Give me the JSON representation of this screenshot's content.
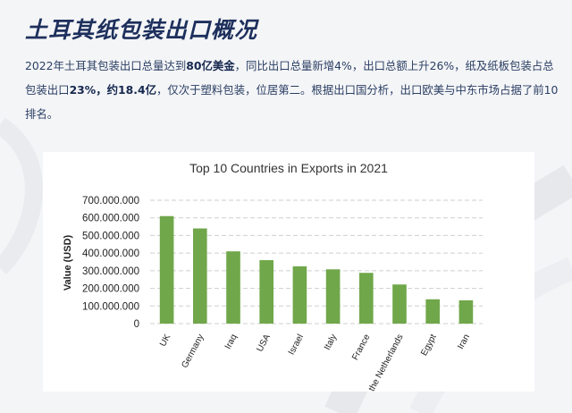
{
  "header": {
    "title": "土耳其纸包装出口概况"
  },
  "summary": {
    "part1": "2022年土耳其包装出口总量达到",
    "bold1": "80亿美金",
    "part2": "，同比出口总量新增4%，出口总额上升26%，纸及纸板包装占总包装出口",
    "bold2": "23%，约18.4亿",
    "part3": "，仅次于塑料包装，位居第二。根据出口国分析，出口欧美与中东市场占据了前10排名。"
  },
  "colors": {
    "bar": "#70a74a",
    "title": "#1d2f5c",
    "grid": "#cfcfcf"
  },
  "chart_data": {
    "type": "bar",
    "title": "Top 10 Countries in Exports in 2021",
    "xlabel": "",
    "ylabel": "Value (USD)",
    "categories": [
      "UK",
      "Germany",
      "Iraq",
      "USA",
      "Israel",
      "Italy",
      "France",
      "the Netherlands",
      "Egypt",
      "Iran"
    ],
    "values": [
      610000000,
      540000000,
      410000000,
      360000000,
      325000000,
      308000000,
      288000000,
      222000000,
      138000000,
      132000000
    ],
    "ylim": [
      0,
      700000000
    ],
    "yticks": [
      "0",
      "100.000.000",
      "200.000.000",
      "300.000.000",
      "400.000.000",
      "500.000.000",
      "600.000.000",
      "700.000.000"
    ],
    "grid": true,
    "legend": "none"
  }
}
